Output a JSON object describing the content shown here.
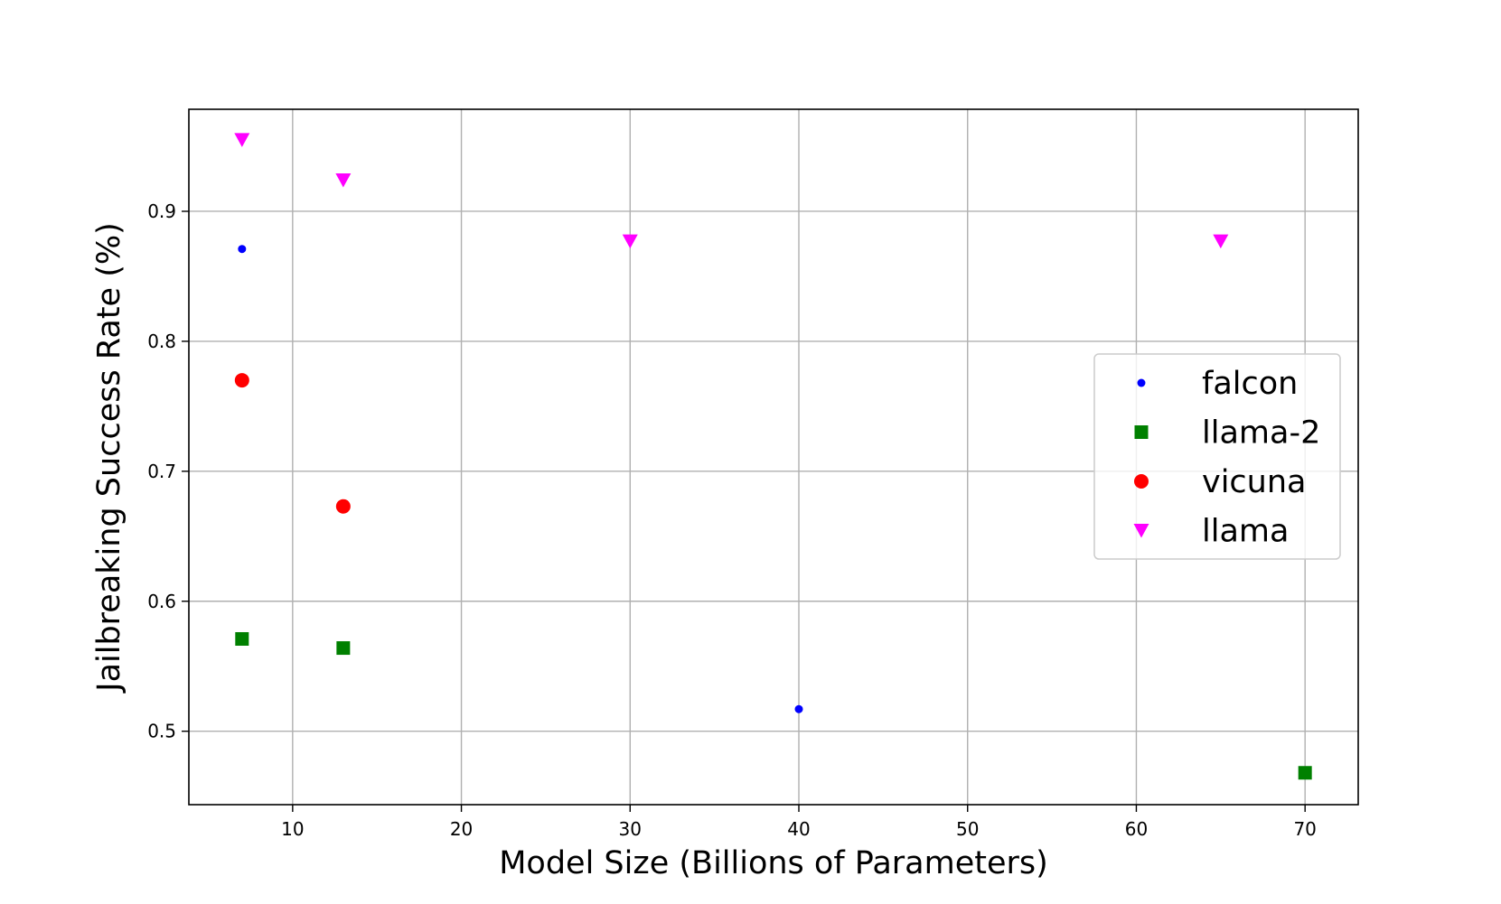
{
  "chart_data": {
    "type": "scatter",
    "title": "",
    "xlabel": "Model Size (Billions of Parameters)",
    "ylabel": "Jailbreaking Success Rate (%)",
    "xlim": [
      3.85,
      73.15
    ],
    "ylim": [
      0.4435,
      0.9785
    ],
    "xticks": [
      10,
      20,
      30,
      40,
      50,
      60,
      70
    ],
    "xtick_labels": [
      "10",
      "20",
      "30",
      "40",
      "50",
      "60",
      "70"
    ],
    "yticks": [
      0.5,
      0.6,
      0.7,
      0.8,
      0.9
    ],
    "ytick_labels": [
      "0.5",
      "0.6",
      "0.7",
      "0.8",
      "0.9"
    ],
    "grid": true,
    "legend_position": "center-right",
    "series": [
      {
        "name": "falcon",
        "marker": "circle-small",
        "color": "#0000ff",
        "points": [
          {
            "x": 7,
            "y": 0.871
          },
          {
            "x": 40,
            "y": 0.517
          }
        ]
      },
      {
        "name": "llama-2",
        "marker": "square",
        "color": "#008000",
        "points": [
          {
            "x": 7,
            "y": 0.571
          },
          {
            "x": 13,
            "y": 0.564
          },
          {
            "x": 70,
            "y": 0.468
          }
        ]
      },
      {
        "name": "vicuna",
        "marker": "circle",
        "color": "#ff0000",
        "points": [
          {
            "x": 7,
            "y": 0.77
          },
          {
            "x": 13,
            "y": 0.673
          }
        ]
      },
      {
        "name": "llama",
        "marker": "triangle-down",
        "color": "#ff00ff",
        "points": [
          {
            "x": 7,
            "y": 0.955
          },
          {
            "x": 13,
            "y": 0.924
          },
          {
            "x": 30,
            "y": 0.877
          },
          {
            "x": 65,
            "y": 0.877
          }
        ]
      }
    ]
  }
}
